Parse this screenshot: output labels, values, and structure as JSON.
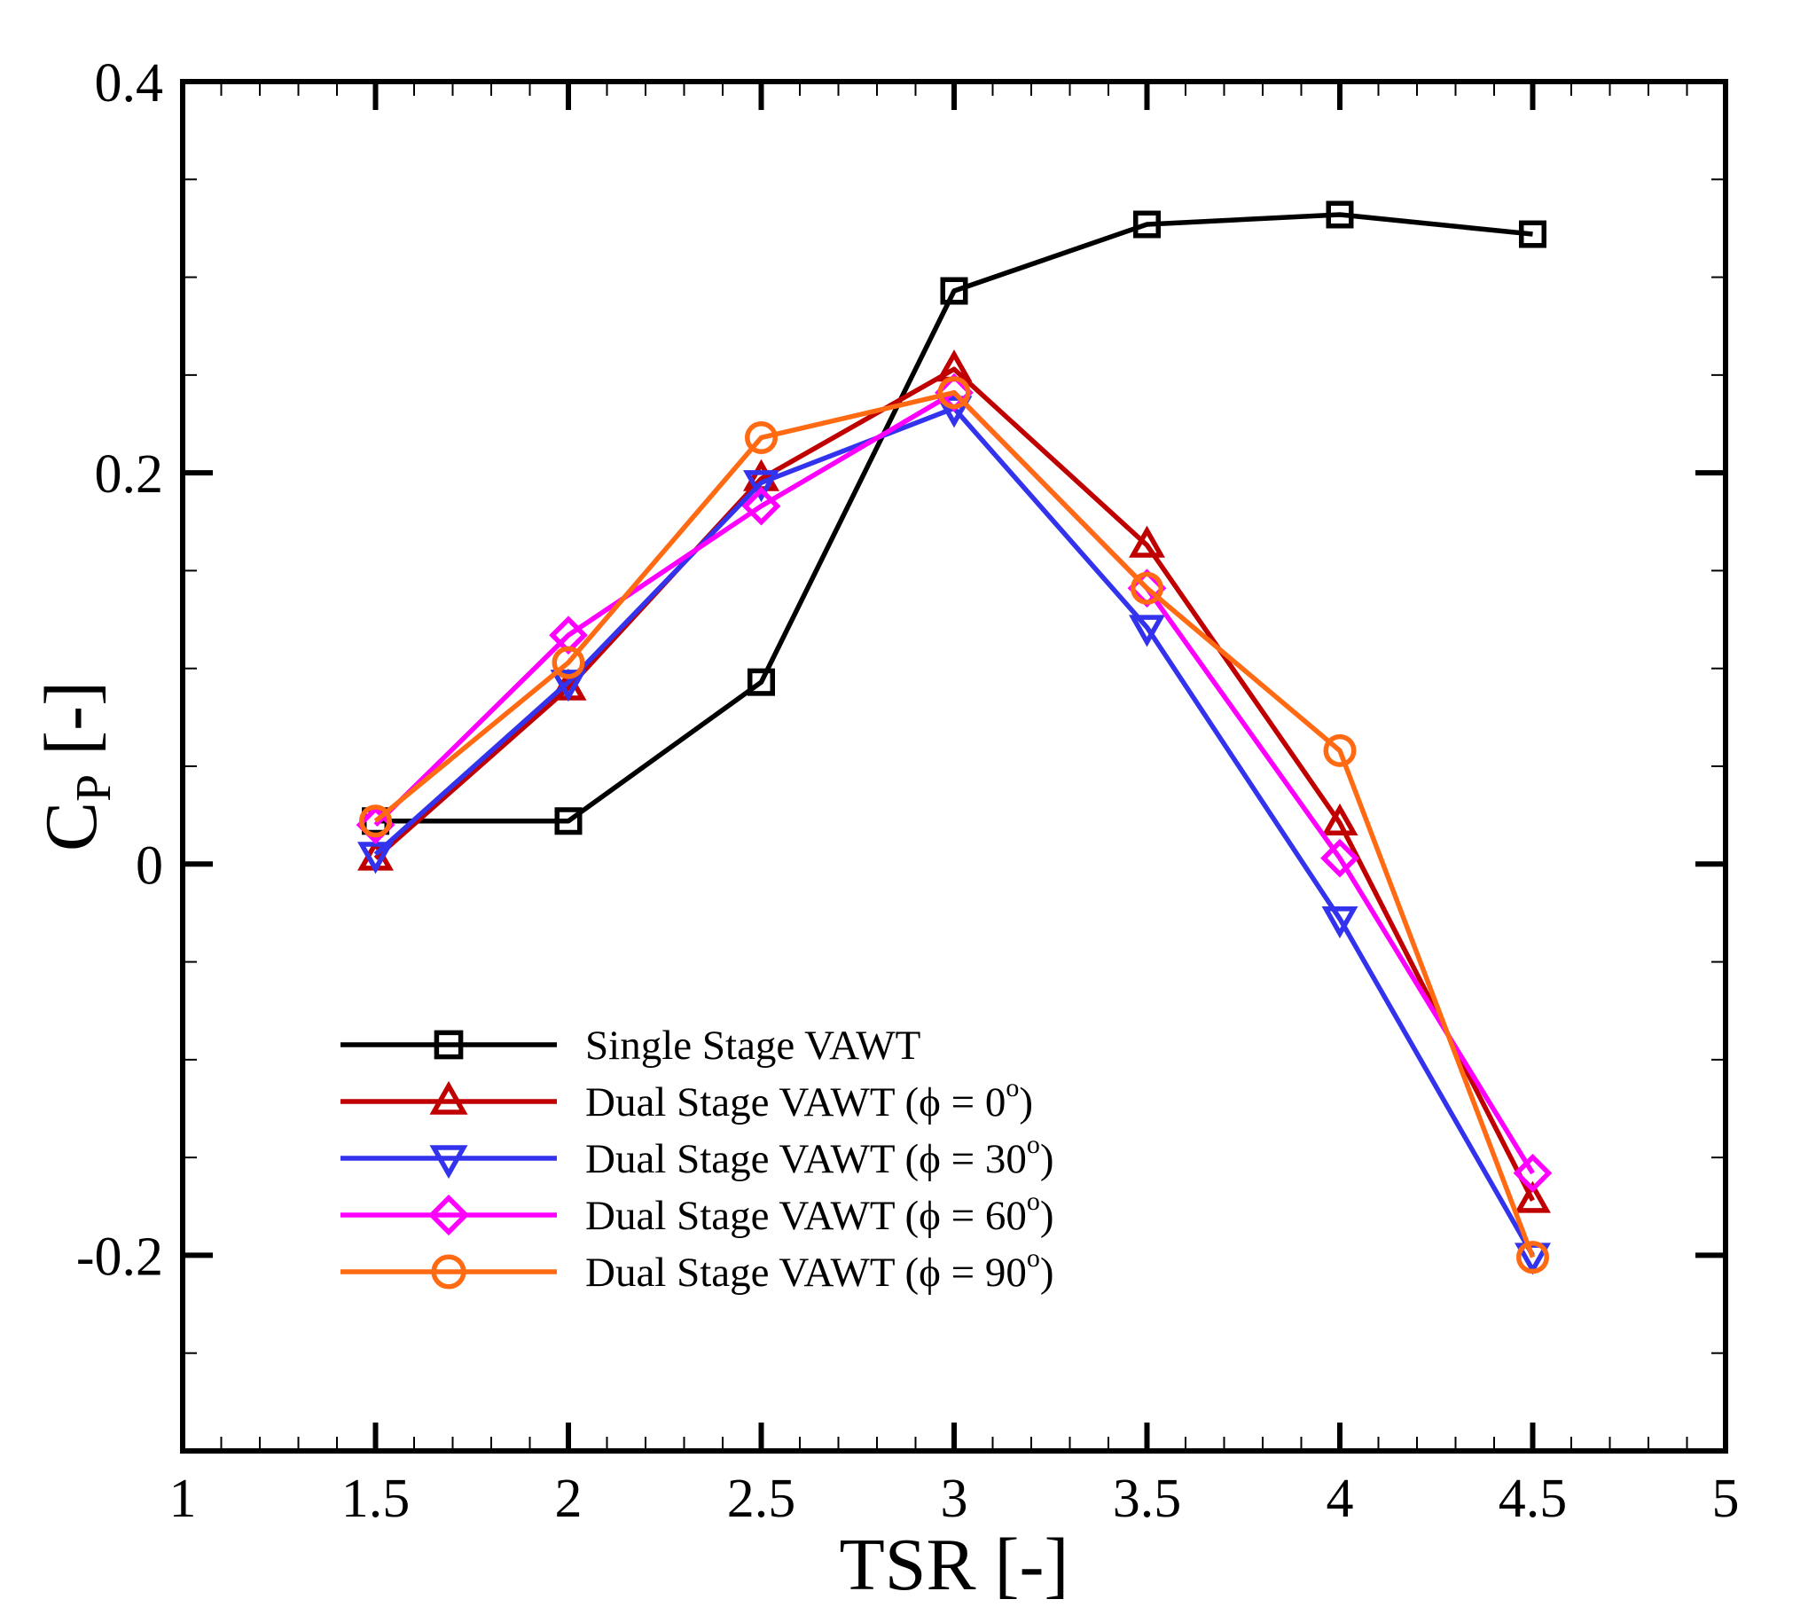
{
  "chart_data": {
    "type": "line",
    "title": "",
    "xlabel": "TSR [-]",
    "ylabel": {
      "main": "C",
      "sub": "P",
      "suffix": " [-]"
    },
    "xlim": [
      1,
      5
    ],
    "ylim": [
      -0.3,
      0.4
    ],
    "x_ticks": [
      1,
      1.5,
      2,
      2.5,
      3,
      3.5,
      4,
      4.5,
      5
    ],
    "x_tick_labels": [
      "1",
      "1.5",
      "2",
      "2.5",
      "3",
      "3.5",
      "4",
      "4.5",
      "5"
    ],
    "y_ticks": [
      -0.2,
      0,
      0.2,
      0.4
    ],
    "y_tick_labels": [
      "-0.2",
      "0",
      "0.2",
      "0.4"
    ],
    "grid": false,
    "legend_position": "bottom-left",
    "series": [
      {
        "name": "Single Stage VAWT",
        "legend_label": "Single Stage VAWT",
        "legend_phi": null,
        "color": "#000000",
        "marker": "square",
        "x": [
          1.5,
          2,
          2.5,
          3,
          3.5,
          4,
          4.5
        ],
        "values": [
          0.022,
          0.022,
          0.093,
          0.293,
          0.327,
          0.332,
          0.322
        ]
      },
      {
        "name": "Dual Stage VAWT (φ = 0°)",
        "legend_label": "Dual Stage VAWT (",
        "legend_phi": "0",
        "color": "#c00000",
        "marker": "triangle-up",
        "x": [
          1.5,
          2,
          2.5,
          3,
          3.5,
          4,
          4.5
        ],
        "values": [
          0.003,
          0.09,
          0.197,
          0.253,
          0.163,
          0.021,
          -0.172
        ]
      },
      {
        "name": "Dual Stage VAWT (φ = 30°)",
        "legend_label": "Dual Stage VAWT (",
        "legend_phi": "30",
        "color": "#3333ee",
        "marker": "triangle-down",
        "x": [
          1.5,
          2,
          2.5,
          3,
          3.5,
          4,
          4.5
        ],
        "values": [
          0.005,
          0.093,
          0.195,
          0.233,
          0.121,
          -0.028,
          -0.2
        ]
      },
      {
        "name": "Dual Stage VAWT (φ = 60°)",
        "legend_label": "Dual Stage VAWT (",
        "legend_phi": "60",
        "color": "#ff00ff",
        "marker": "diamond",
        "x": [
          1.5,
          2,
          2.5,
          3,
          3.5,
          4,
          4.5
        ],
        "values": [
          0.02,
          0.117,
          0.183,
          0.241,
          0.141,
          0.003,
          -0.158
        ]
      },
      {
        "name": "Dual Stage VAWT (φ = 90°)",
        "legend_label": "Dual Stage VAWT (",
        "legend_phi": "90",
        "color": "#ff6a13",
        "marker": "circle",
        "x": [
          1.5,
          2,
          2.5,
          3,
          3.5,
          4,
          4.5
        ],
        "values": [
          0.022,
          0.103,
          0.218,
          0.241,
          0.141,
          0.058,
          -0.201
        ]
      }
    ]
  }
}
